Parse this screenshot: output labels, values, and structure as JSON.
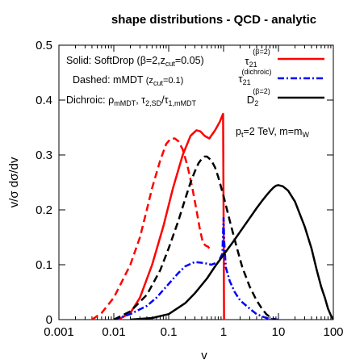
{
  "chart_data": {
    "type": "line",
    "title": "shape distributions - QCD - analytic",
    "xlabel": "v",
    "ylabel": "v/σ dσ/dv",
    "xscale": "log",
    "xlim": [
      0.001,
      100
    ],
    "ylim": [
      0,
      0.5
    ],
    "xticks": [
      "0.001",
      "0.01",
      "0.1",
      "1",
      "10",
      "100"
    ],
    "yticks": [
      "0",
      "0.1",
      "0.2",
      "0.3",
      "0.4",
      "0.5"
    ],
    "grid": false,
    "legend_position": "top-right",
    "annotations": {
      "solid": {
        "main": "Solid: SoftDrop (β=2,z",
        "sub": "cut",
        "tail": "=0.05)"
      },
      "dashed": {
        "main": "Dashed: mMDT ",
        "small": "(z",
        "sub": "cut",
        "tail": "=0.1)"
      },
      "dichroic": {
        "main": "Dichroic: ρ",
        "sub1": "mMDT",
        "mid1": ", τ",
        "sub2": "2,SD",
        "mid2": "/τ",
        "sub3": "1,mMDT"
      },
      "condition": {
        "p": "p",
        "psub": "t",
        "mid": "=2 TeV, m=m",
        "wsub": "W"
      }
    },
    "series": [
      {
        "name": "τ21 (β=2)",
        "label_main": "τ",
        "label_sub": "21",
        "label_sup": "(β=2)",
        "color": "#ff0000",
        "style": "solid",
        "x": [
          0.012,
          0.02,
          0.03,
          0.05,
          0.08,
          0.12,
          0.18,
          0.25,
          0.32,
          0.38,
          0.45,
          0.55,
          0.7,
          0.85,
          0.98,
          1.0,
          1.02,
          1.05
        ],
        "y": [
          0.0,
          0.012,
          0.04,
          0.1,
          0.17,
          0.24,
          0.3,
          0.335,
          0.345,
          0.343,
          0.335,
          0.33,
          0.345,
          0.36,
          0.375,
          0.2,
          0.0,
          0.0
        ]
      },
      {
        "name": "τ21 (β=2) mMDT",
        "color": "#ff0000",
        "style": "dashed",
        "x": [
          0.004,
          0.006,
          0.01,
          0.015,
          0.02,
          0.03,
          0.04,
          0.05,
          0.07,
          0.09,
          0.11,
          0.13,
          0.15,
          0.18,
          0.22,
          0.27,
          0.32,
          0.37,
          0.42,
          0.47,
          0.52,
          0.55
        ],
        "y": [
          0.0,
          0.012,
          0.04,
          0.075,
          0.1,
          0.15,
          0.2,
          0.24,
          0.29,
          0.32,
          0.33,
          0.33,
          0.325,
          0.31,
          0.28,
          0.24,
          0.2,
          0.165,
          0.14,
          0.135,
          0.133,
          0.13
        ]
      },
      {
        "name": "τ21 (dichroic)",
        "label_main": "τ",
        "label_sub": "21",
        "label_sup": "(dichroic)",
        "color": "#0000ff",
        "style": "dashdot",
        "x": [
          0.01,
          0.02,
          0.04,
          0.06,
          0.1,
          0.15,
          0.2,
          0.3,
          0.45,
          0.6,
          0.8,
          0.95,
          1.0,
          1.03,
          1.1,
          1.3,
          1.6,
          2.0,
          3.0,
          4.0,
          6.0,
          8.0,
          10.0
        ],
        "y": [
          0.0,
          0.01,
          0.025,
          0.04,
          0.065,
          0.085,
          0.097,
          0.105,
          0.103,
          0.1,
          0.105,
          0.12,
          0.185,
          0.14,
          0.095,
          0.07,
          0.05,
          0.035,
          0.02,
          0.01,
          0.003,
          0.0005,
          0.0
        ]
      },
      {
        "name": "D2 (β=2)",
        "label_main": "D",
        "label_sub": "2",
        "label_sup": "(β=2)",
        "color": "#000000",
        "style": "solid",
        "x": [
          0.02,
          0.05,
          0.1,
          0.2,
          0.3,
          0.5,
          0.7,
          1.0,
          1.5,
          2.0,
          3.0,
          4.0,
          5.0,
          6.0,
          7.0,
          8.0,
          9.0,
          10.0,
          12.0,
          15.0,
          20.0,
          30.0,
          40.0,
          50.0,
          60.0,
          70.0,
          80.0,
          90.0,
          100.0
        ],
        "y": [
          0.0,
          0.003,
          0.01,
          0.03,
          0.048,
          0.075,
          0.097,
          0.118,
          0.142,
          0.16,
          0.185,
          0.203,
          0.216,
          0.226,
          0.234,
          0.24,
          0.244,
          0.245,
          0.243,
          0.235,
          0.215,
          0.17,
          0.13,
          0.09,
          0.06,
          0.04,
          0.02,
          0.008,
          0.0
        ]
      },
      {
        "name": "D2 (β=2) mMDT",
        "color": "#000000",
        "style": "dashed",
        "x": [
          0.01,
          0.02,
          0.04,
          0.07,
          0.1,
          0.15,
          0.2,
          0.25,
          0.3,
          0.35,
          0.4,
          0.45,
          0.5,
          0.6,
          0.7,
          0.8,
          1.0,
          1.3,
          1.7,
          2.2,
          3.0,
          4.0,
          5.0,
          6.0,
          7.0,
          8.0,
          9.0
        ],
        "y": [
          0.0,
          0.015,
          0.045,
          0.09,
          0.13,
          0.18,
          0.22,
          0.25,
          0.27,
          0.285,
          0.293,
          0.297,
          0.297,
          0.29,
          0.277,
          0.26,
          0.225,
          0.18,
          0.135,
          0.095,
          0.06,
          0.035,
          0.02,
          0.01,
          0.005,
          0.002,
          0.0
        ]
      }
    ]
  }
}
